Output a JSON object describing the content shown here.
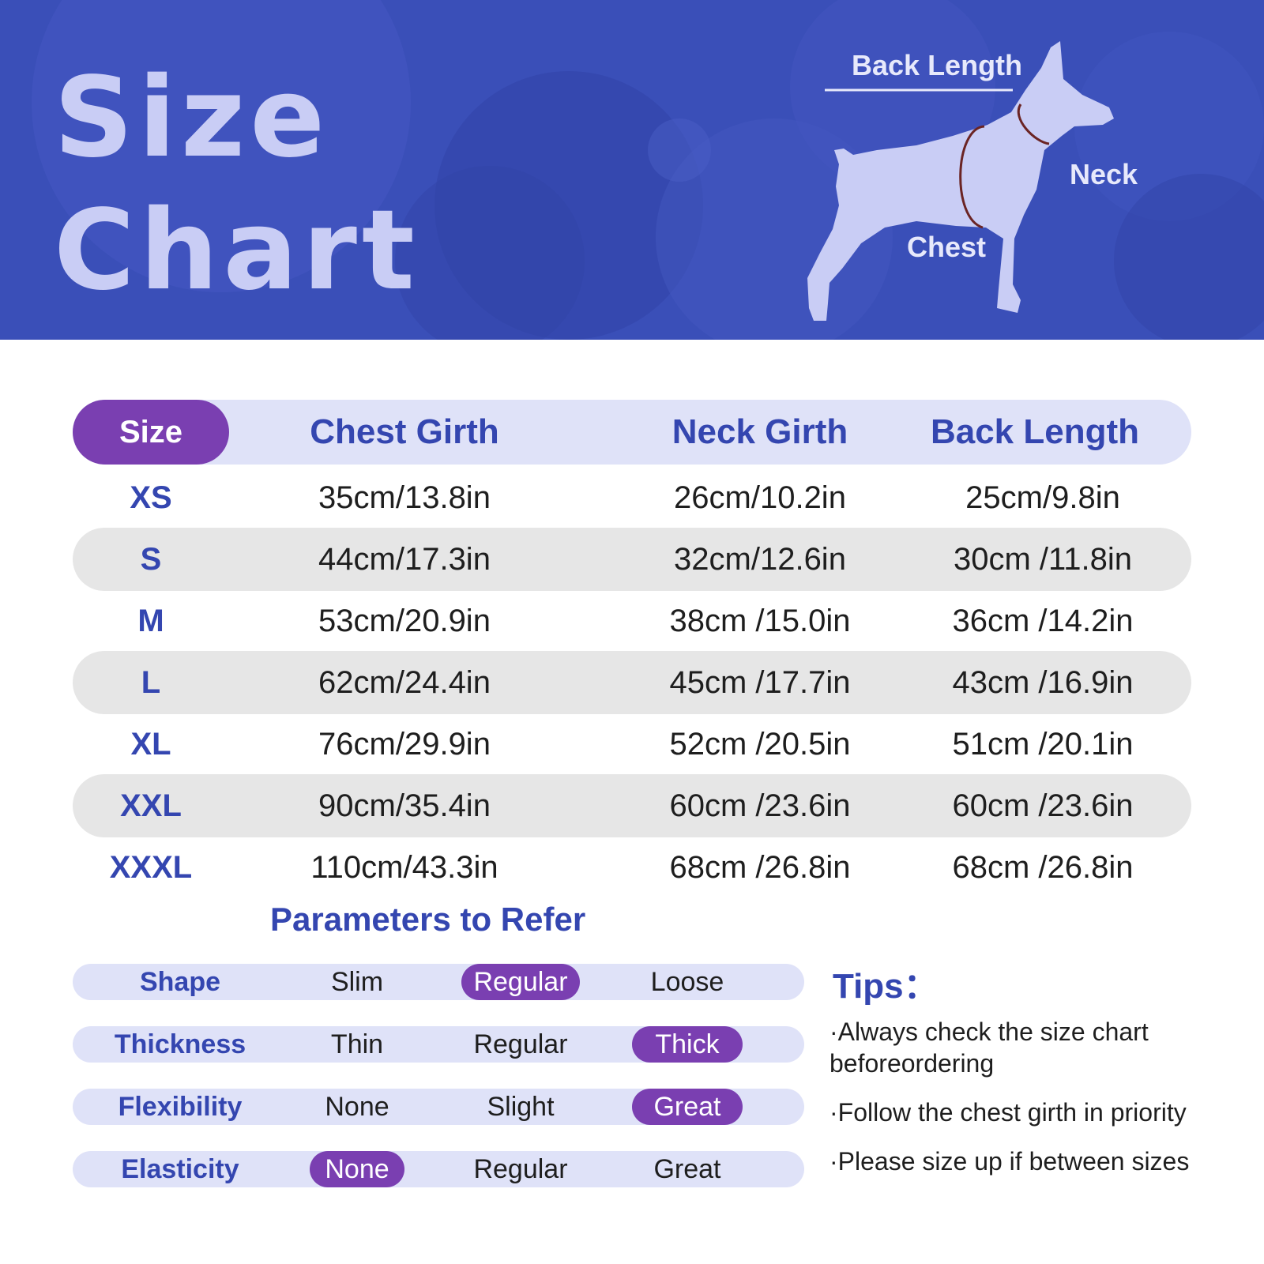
{
  "header": {
    "title_line1": "Size",
    "title_line2": "Chart",
    "diagram_labels": {
      "back_length": "Back Length",
      "neck": "Neck",
      "chest": "Chest"
    }
  },
  "table": {
    "headers": [
      "Size",
      "Chest Girth",
      "Neck Girth",
      "Back Length"
    ],
    "rows": [
      [
        "XS",
        "35cm/13.8in",
        "26cm/10.2in",
        "25cm/9.8in"
      ],
      [
        "S",
        "44cm/17.3in",
        "32cm/12.6in",
        "30cm /11.8in"
      ],
      [
        "M",
        "53cm/20.9in",
        "38cm /15.0in",
        "36cm /14.2in"
      ],
      [
        "L",
        "62cm/24.4in",
        "45cm /17.7in",
        "43cm /16.9in"
      ],
      [
        "XL",
        "76cm/29.9in",
        "52cm /20.5in",
        "51cm /20.1in"
      ],
      [
        "XXL",
        "90cm/35.4in",
        "60cm /23.6in",
        "60cm /23.6in"
      ],
      [
        "XXXL",
        "110cm/43.3in",
        "68cm /26.8in",
        "68cm /26.8in"
      ]
    ]
  },
  "parameters": {
    "title": "Parameters to Refer",
    "items": [
      {
        "label": "Shape",
        "options": [
          "Slim",
          "Regular",
          "Loose"
        ],
        "selected": "Regular"
      },
      {
        "label": "Thickness",
        "options": [
          "Thin",
          "Regular",
          "Thick"
        ],
        "selected": "Thick"
      },
      {
        "label": "Flexibility",
        "options": [
          "None",
          "Slight",
          "Great"
        ],
        "selected": "Great"
      },
      {
        "label": "Elasticity",
        "options": [
          "None",
          "Regular",
          "Great"
        ],
        "selected": "None"
      }
    ]
  },
  "tips": {
    "title": "Tips：",
    "items": [
      "·Always check the size chart beforeordering",
      "·Follow the chest girth in priority",
      "·Please size up if between sizes"
    ]
  },
  "colors": {
    "header_bg": "#3a4fb8",
    "accent_purple": "#7a3fb1",
    "heading_blue": "#3446b0",
    "pill_bg": "#dfe2f8",
    "alt_row_bg": "#e6e6e6"
  }
}
